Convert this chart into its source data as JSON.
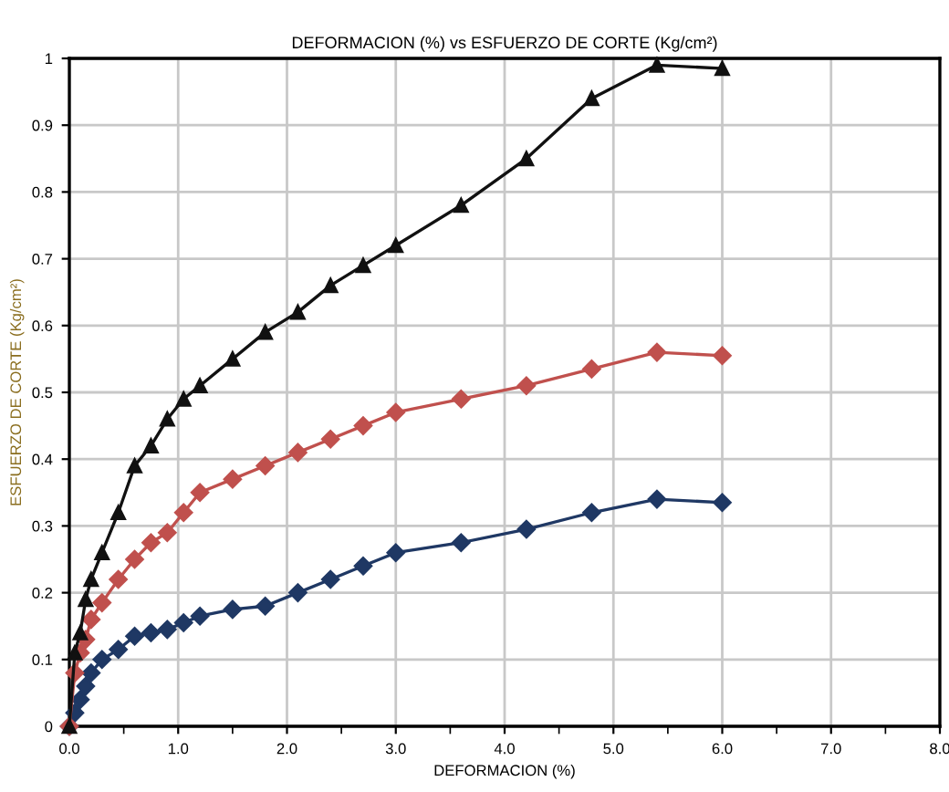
{
  "chart_data": {
    "type": "line",
    "title": "DEFORMACION (%) vs ESFUERZO DE CORTE (Kg/cm²)",
    "xlabel": "DEFORMACION (%)",
    "ylabel": "ESFUERZO DE CORTE (Kg/cm²)",
    "x": [
      0,
      0.05,
      0.1,
      0.15,
      0.2,
      0.3,
      0.45,
      0.6,
      0.75,
      0.9,
      1.05,
      1.2,
      1.5,
      1.8,
      2.1,
      2.4,
      2.7,
      3.0,
      3.6,
      4.2,
      4.8,
      5.4,
      6.0
    ],
    "series": [
      {
        "color": "#111111",
        "marker": "triangle",
        "values": [
          0,
          0.11,
          0.14,
          0.19,
          0.22,
          0.26,
          0.32,
          0.39,
          0.42,
          0.46,
          0.49,
          0.51,
          0.55,
          0.59,
          0.62,
          0.66,
          0.69,
          0.72,
          0.78,
          0.85,
          0.94,
          0.99,
          0.985
        ]
      },
      {
        "color": "#c0504d",
        "marker": "diamond",
        "values": [
          0,
          0.08,
          0.11,
          0.13,
          0.16,
          0.185,
          0.22,
          0.25,
          0.275,
          0.29,
          0.32,
          0.35,
          0.37,
          0.39,
          0.41,
          0.43,
          0.45,
          0.47,
          0.49,
          0.51,
          0.535,
          0.56,
          0.555
        ]
      },
      {
        "color": "#1f3864",
        "marker": "diamond",
        "values": [
          0,
          0.02,
          0.04,
          0.06,
          0.08,
          0.1,
          0.115,
          0.135,
          0.14,
          0.145,
          0.155,
          0.165,
          0.175,
          0.18,
          0.2,
          0.22,
          0.24,
          0.26,
          0.275,
          0.295,
          0.32,
          0.34,
          0.335
        ]
      }
    ],
    "xlim": [
      0,
      8
    ],
    "ylim": [
      0,
      1
    ],
    "xticks": [
      {
        "value": 0,
        "label": "0.0"
      },
      {
        "value": 0.5,
        "label": null
      },
      {
        "value": 1,
        "label": "1.0"
      },
      {
        "value": 1.5,
        "label": null
      },
      {
        "value": 2,
        "label": "2.0"
      },
      {
        "value": 2.5,
        "label": null
      },
      {
        "value": 3,
        "label": "3.0"
      },
      {
        "value": 3.5,
        "label": null
      },
      {
        "value": 4,
        "label": "4.0"
      },
      {
        "value": 4.5,
        "label": null
      },
      {
        "value": 5,
        "label": "5.0"
      },
      {
        "value": 5.5,
        "label": null
      },
      {
        "value": 6,
        "label": "6.0"
      },
      {
        "value": 6.5,
        "label": null
      },
      {
        "value": 7,
        "label": "7.0"
      },
      {
        "value": 7.5,
        "label": null
      },
      {
        "value": 8,
        "label": "8.0"
      }
    ],
    "yticks": [
      0,
      0.1,
      0.2,
      0.3,
      0.4,
      0.5,
      0.6,
      0.7,
      0.8,
      0.9,
      1
    ],
    "grid": true,
    "line_style": "solid"
  }
}
